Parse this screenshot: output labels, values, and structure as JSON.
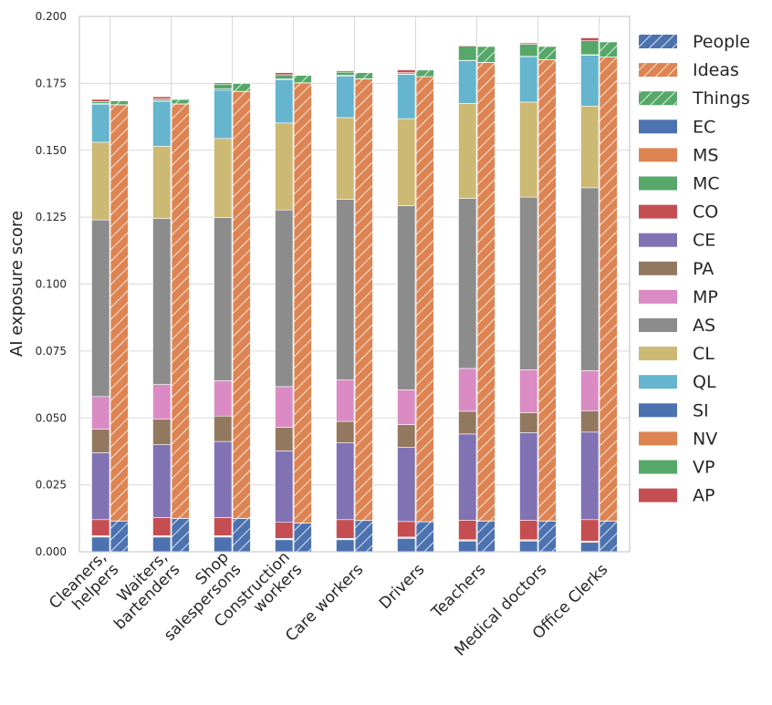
{
  "chart_data": {
    "type": "bar",
    "title": "",
    "xlabel": "",
    "ylabel": "AI exposure score",
    "ylim": [
      0,
      0.2
    ],
    "yticks": [
      "0.000",
      "0.025",
      "0.050",
      "0.075",
      "0.100",
      "0.125",
      "0.150",
      "0.175",
      "0.200"
    ],
    "grid": true,
    "legend_position": "right",
    "categories": [
      [
        "Cleaners,",
        "helpers"
      ],
      [
        "Waiters,",
        "bartenders"
      ],
      [
        "Shop",
        "salespersons"
      ],
      [
        "Construction",
        "workers"
      ],
      [
        "Care workers"
      ],
      [
        "Drivers"
      ],
      [
        "Teachers"
      ],
      [
        "Medical doctors"
      ],
      [
        "Office Clerks"
      ]
    ],
    "stack_left": {
      "description": "solid stacked bars, bottom to top",
      "series": [
        {
          "name": "SI",
          "color": "#4c72b0",
          "values": [
            0.0055,
            0.0055,
            0.0055,
            0.0045,
            0.0045,
            0.005,
            0.004,
            0.004,
            0.0035
          ]
        },
        {
          "name": "NV",
          "color": "#dd8452",
          "values": [
            0.0003,
            0.0003,
            0.0003,
            0.0003,
            0.0003,
            0.0003,
            0.0003,
            0.0003,
            0.0003
          ]
        },
        {
          "name": "VP",
          "color": "#55a868",
          "values": [
            0.0002,
            0.0002,
            0.0002,
            0.0002,
            0.0002,
            0.0002,
            0.0002,
            0.0002,
            0.0002
          ]
        },
        {
          "name": "AP",
          "color": "#c44e52",
          "values": [
            0.006,
            0.0068,
            0.0068,
            0.006,
            0.007,
            0.0058,
            0.0073,
            0.0073,
            0.008
          ]
        },
        {
          "name": "EC",
          "color": "#4c72b0",
          "values": [
            0,
            0,
            0,
            0,
            0,
            0,
            0,
            0,
            0
          ]
        },
        {
          "name": "MS",
          "color": "#dd8452",
          "values": [
            0,
            0,
            0,
            0,
            0,
            0,
            0,
            0,
            0
          ]
        },
        {
          "name": "MC",
          "color": "#55a868",
          "values": [
            0,
            0,
            0,
            0,
            0,
            0,
            0,
            0,
            0
          ]
        },
        {
          "name": "CO",
          "color": "#c44e52",
          "values": [
            0,
            0,
            0,
            0,
            0,
            0,
            0,
            0,
            0
          ]
        },
        {
          "name": "CE",
          "color": "#8172b3",
          "values": [
            0.025,
            0.0272,
            0.0284,
            0.0267,
            0.0287,
            0.0277,
            0.0322,
            0.0327,
            0.0327
          ]
        },
        {
          "name": "PA",
          "color": "#937860",
          "values": [
            0.0088,
            0.0095,
            0.0095,
            0.0088,
            0.008,
            0.0085,
            0.0085,
            0.0075,
            0.008
          ]
        },
        {
          "name": "MP",
          "color": "#da8bc3",
          "values": [
            0.0122,
            0.013,
            0.0132,
            0.0152,
            0.0155,
            0.013,
            0.016,
            0.016,
            0.015
          ]
        },
        {
          "name": "AS",
          "color": "#8c8c8c",
          "values": [
            0.066,
            0.062,
            0.061,
            0.066,
            0.0675,
            0.0688,
            0.0635,
            0.0645,
            0.0683
          ]
        },
        {
          "name": "CL",
          "color": "#ccb974",
          "values": [
            0.029,
            0.027,
            0.0295,
            0.0325,
            0.0305,
            0.0325,
            0.0355,
            0.0355,
            0.0305
          ]
        },
        {
          "name": "QL",
          "color": "#64b5cd",
          "values": [
            0.0142,
            0.0168,
            0.018,
            0.0162,
            0.0155,
            0.0165,
            0.016,
            0.017,
            0.019
          ]
        },
        {
          "name": "EC_top",
          "color": "#4c72b0",
          "values": [
            0.0003,
            0.0003,
            0.0005,
            0.0003,
            0.0003,
            0.0002,
            0.0001,
            0.0001,
            0.0002
          ]
        },
        {
          "name": "MC_top",
          "color": "#55a868",
          "values": [
            0.0007,
            0.0006,
            0.0018,
            0.0015,
            0.0012,
            0.0005,
            0.0053,
            0.0045,
            0.0052
          ]
        },
        {
          "name": "CO_top",
          "color": "#c44e52",
          "values": [
            0.0008,
            0.0008,
            0.0005,
            0.0008,
            0.0005,
            0.001,
            0.0003,
            0.0005,
            0.0011
          ]
        }
      ]
    },
    "stack_right": {
      "description": "hatched stacked bars, bottom to top",
      "series": [
        {
          "name": "People",
          "color": "#4c72b0",
          "values": [
            0.0115,
            0.0125,
            0.0125,
            0.0107,
            0.0117,
            0.0112,
            0.0115,
            0.0115,
            0.0115
          ]
        },
        {
          "name": "Ideas",
          "color": "#dd8452",
          "values": [
            0.1555,
            0.1548,
            0.1595,
            0.1645,
            0.165,
            0.1663,
            0.1713,
            0.1723,
            0.1733
          ]
        },
        {
          "name": "Things",
          "color": "#55a868",
          "values": [
            0.0015,
            0.0017,
            0.003,
            0.0028,
            0.0023,
            0.0025,
            0.006,
            0.005,
            0.0057
          ]
        }
      ]
    },
    "legend": [
      {
        "label": "People",
        "color": "#4c72b0",
        "hatch": true
      },
      {
        "label": "Ideas",
        "color": "#dd8452",
        "hatch": true
      },
      {
        "label": "Things",
        "color": "#55a868",
        "hatch": true
      },
      {
        "label": "EC",
        "color": "#4c72b0",
        "hatch": false
      },
      {
        "label": "MS",
        "color": "#dd8452",
        "hatch": false
      },
      {
        "label": "MC",
        "color": "#55a868",
        "hatch": false
      },
      {
        "label": "CO",
        "color": "#c44e52",
        "hatch": false
      },
      {
        "label": "CE",
        "color": "#8172b3",
        "hatch": false
      },
      {
        "label": "PA",
        "color": "#937860",
        "hatch": false
      },
      {
        "label": "MP",
        "color": "#da8bc3",
        "hatch": false
      },
      {
        "label": "AS",
        "color": "#8c8c8c",
        "hatch": false
      },
      {
        "label": "CL",
        "color": "#ccb974",
        "hatch": false
      },
      {
        "label": "QL",
        "color": "#64b5cd",
        "hatch": false
      },
      {
        "label": "SI",
        "color": "#4c72b0",
        "hatch": false
      },
      {
        "label": "NV",
        "color": "#dd8452",
        "hatch": false
      },
      {
        "label": "VP",
        "color": "#55a868",
        "hatch": false
      },
      {
        "label": "AP",
        "color": "#c44e52",
        "hatch": false
      }
    ]
  }
}
